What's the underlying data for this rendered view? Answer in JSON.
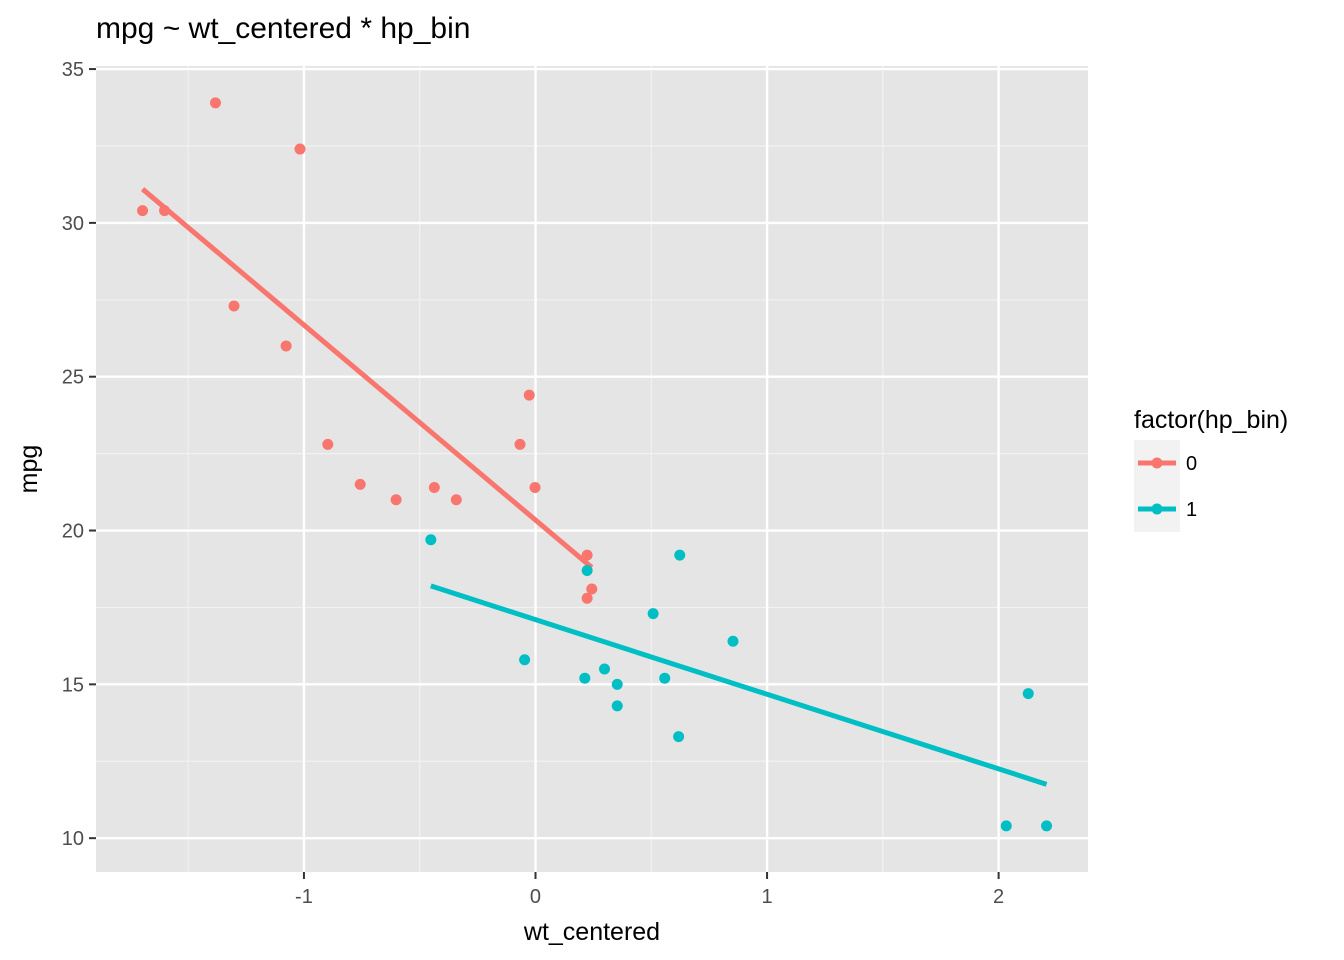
{
  "chart_data": {
    "type": "scatter",
    "title": "mpg ~ wt_centered * hp_bin",
    "xlabel": "wt_centered",
    "ylabel": "mpg",
    "xlim": [
      -1.898,
      2.386
    ],
    "ylim": [
      8.9,
      35.1
    ],
    "x_ticks": [
      -1,
      0,
      1,
      2
    ],
    "x_tick_labels": [
      "-1",
      "0",
      "1",
      "2"
    ],
    "y_ticks": [
      10,
      15,
      20,
      25,
      30,
      35
    ],
    "y_tick_labels": [
      "10",
      "15",
      "20",
      "25",
      "30",
      "35"
    ],
    "grid": true,
    "legend": {
      "title": "factor(hp_bin)",
      "position": "right",
      "entries": [
        "0",
        "1"
      ]
    },
    "series": [
      {
        "name": "0",
        "color": "#f8766d",
        "points": [
          {
            "x": -1.697,
            "y": 30.4
          },
          {
            "x": -1.602,
            "y": 30.4
          },
          {
            "x": -1.382,
            "y": 33.9
          },
          {
            "x": -1.302,
            "y": 27.3
          },
          {
            "x": -1.077,
            "y": 26.0
          },
          {
            "x": -1.017,
            "y": 32.4
          },
          {
            "x": -0.897,
            "y": 22.8
          },
          {
            "x": -0.757,
            "y": 21.5
          },
          {
            "x": -0.602,
            "y": 21.0
          },
          {
            "x": -0.437,
            "y": 21.4
          },
          {
            "x": -0.342,
            "y": 21.0
          },
          {
            "x": -0.067,
            "y": 22.8
          },
          {
            "x": -0.027,
            "y": 24.4
          },
          {
            "x": -0.002,
            "y": 21.4
          },
          {
            "x": 0.223,
            "y": 19.2
          },
          {
            "x": 0.223,
            "y": 17.8
          },
          {
            "x": 0.243,
            "y": 18.1
          }
        ],
        "fit": {
          "x": [
            -1.697,
            0.243
          ],
          "y": [
            31.1,
            18.8
          ]
        }
      },
      {
        "name": "1",
        "color": "#00bfc4",
        "points": [
          {
            "x": -0.452,
            "y": 19.7
          },
          {
            "x": -0.047,
            "y": 15.8
          },
          {
            "x": 0.213,
            "y": 15.2
          },
          {
            "x": 0.223,
            "y": 18.7
          },
          {
            "x": 0.298,
            "y": 15.5
          },
          {
            "x": 0.353,
            "y": 15.0
          },
          {
            "x": 0.353,
            "y": 14.3
          },
          {
            "x": 0.508,
            "y": 17.3
          },
          {
            "x": 0.558,
            "y": 15.2
          },
          {
            "x": 0.618,
            "y": 13.3
          },
          {
            "x": 0.623,
            "y": 19.2
          },
          {
            "x": 0.853,
            "y": 16.4
          },
          {
            "x": 2.033,
            "y": 10.4
          },
          {
            "x": 2.128,
            "y": 14.7
          },
          {
            "x": 2.207,
            "y": 10.4
          }
        ],
        "fit": {
          "x": [
            -0.452,
            2.207
          ],
          "y": [
            18.2,
            11.75
          ]
        }
      }
    ]
  }
}
